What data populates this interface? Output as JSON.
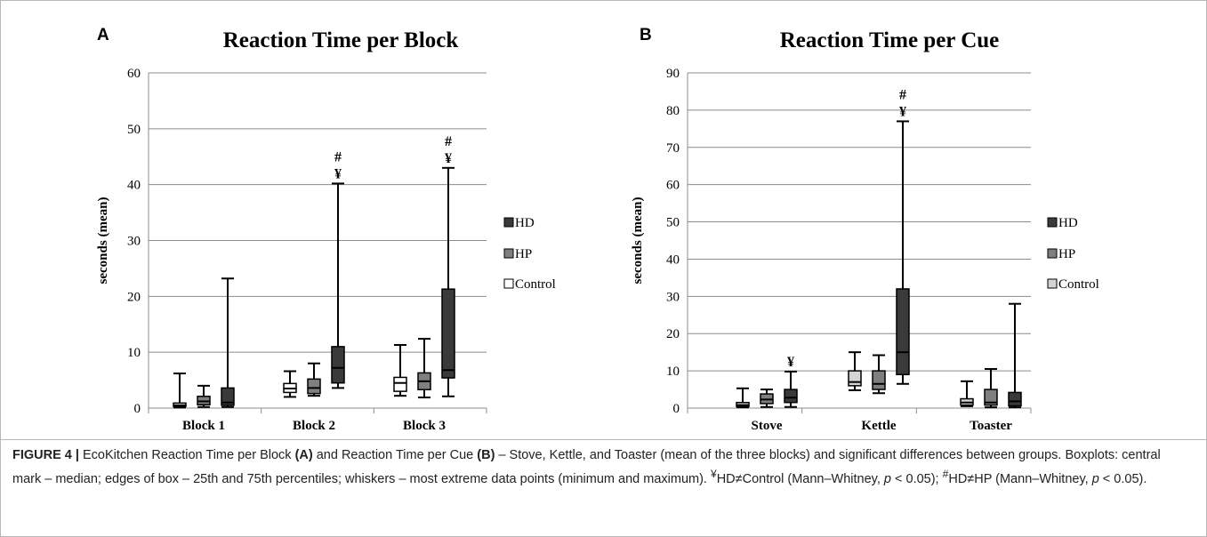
{
  "colors": {
    "HD": "#3a3a3a",
    "HP": "#7f7f7f",
    "Control": "#ffffff",
    "Control_B": "#d4d4d4",
    "grid": "#8c8c8c"
  },
  "chart_data": [
    {
      "type": "box",
      "panel": "A",
      "title": "Reaction Time per Block",
      "xlabel": "",
      "ylabel": "seconds (mean)",
      "ylim": [
        0,
        60
      ],
      "yticks": [
        0,
        10,
        20,
        30,
        40,
        50,
        60
      ],
      "grid": true,
      "legend_position": "right",
      "legend": [
        "HD",
        "HP",
        "Control"
      ],
      "categories": [
        "Block 1",
        "Block 2",
        "Block 3"
      ],
      "series": [
        {
          "name": "Control",
          "boxes": [
            {
              "min": 0.1,
              "q1": 0.3,
              "median": 0.5,
              "q3": 0.9,
              "max": 6.2
            },
            {
              "min": 2.0,
              "q1": 2.8,
              "median": 3.5,
              "q3": 4.4,
              "max": 6.6
            },
            {
              "min": 2.2,
              "q1": 3.0,
              "median": 4.5,
              "q3": 5.5,
              "max": 11.3
            }
          ]
        },
        {
          "name": "HP",
          "boxes": [
            {
              "min": 0.2,
              "q1": 0.6,
              "median": 1.2,
              "q3": 2.1,
              "max": 4.0
            },
            {
              "min": 2.2,
              "q1": 2.6,
              "median": 3.6,
              "q3": 5.2,
              "max": 8.0
            },
            {
              "min": 1.9,
              "q1": 3.3,
              "median": 4.8,
              "q3": 6.3,
              "max": 12.4
            }
          ]
        },
        {
          "name": "HD",
          "boxes": [
            {
              "min": 0.2,
              "q1": 0.5,
              "median": 1.0,
              "q3": 3.6,
              "max": 23.2
            },
            {
              "min": 3.6,
              "q1": 4.5,
              "median": 7.2,
              "q3": 11.0,
              "max": 40.2
            },
            {
              "min": 2.1,
              "q1": 5.4,
              "median": 6.8,
              "q3": 21.3,
              "max": 43.0
            }
          ]
        }
      ],
      "annotations": [
        {
          "category": "Block 2",
          "series": "HD",
          "marks": [
            "#",
            "¥"
          ]
        },
        {
          "category": "Block 3",
          "series": "HD",
          "marks": [
            "#",
            "¥"
          ]
        }
      ]
    },
    {
      "type": "box",
      "panel": "B",
      "title": "Reaction Time per Cue",
      "xlabel": "",
      "ylabel": "seconds (mean)",
      "ylim": [
        0,
        90
      ],
      "yticks": [
        0,
        10,
        20,
        30,
        40,
        50,
        60,
        70,
        80,
        90
      ],
      "grid": true,
      "legend_position": "right",
      "legend": [
        "HD",
        "HP",
        "Control"
      ],
      "categories": [
        "Stove",
        "Kettle",
        "Toaster"
      ],
      "series": [
        {
          "name": "Control",
          "boxes": [
            {
              "min": 0.2,
              "q1": 0.4,
              "median": 0.8,
              "q3": 1.5,
              "max": 5.3
            },
            {
              "min": 4.8,
              "q1": 6.0,
              "median": 7.0,
              "q3": 10.0,
              "max": 15.0
            },
            {
              "min": 0.5,
              "q1": 0.8,
              "median": 1.5,
              "q3": 2.5,
              "max": 7.2
            }
          ]
        },
        {
          "name": "HP",
          "boxes": [
            {
              "min": 0.3,
              "q1": 1.2,
              "median": 2.3,
              "q3": 3.8,
              "max": 5.0
            },
            {
              "min": 4.0,
              "q1": 5.0,
              "median": 6.5,
              "q3": 10.0,
              "max": 14.2
            },
            {
              "min": 0.2,
              "q1": 0.8,
              "median": 1.5,
              "q3": 5.0,
              "max": 10.5
            }
          ]
        },
        {
          "name": "HD",
          "boxes": [
            {
              "min": 0.3,
              "q1": 1.5,
              "median": 2.8,
              "q3": 5.0,
              "max": 9.8
            },
            {
              "min": 6.5,
              "q1": 9.0,
              "median": 15.0,
              "q3": 32.0,
              "max": 77.0
            },
            {
              "min": 0.2,
              "q1": 0.6,
              "median": 1.8,
              "q3": 4.2,
              "max": 28.0
            }
          ]
        }
      ],
      "annotations": [
        {
          "category": "Stove",
          "series": "HD",
          "marks": [
            "¥"
          ]
        },
        {
          "category": "Kettle",
          "series": "HD",
          "marks": [
            "#",
            "¥"
          ]
        }
      ]
    }
  ],
  "caption": {
    "label": "FIGURE 4 |",
    "part1": "EcoKitchen Reaction Time per Block",
    "a": "(A)",
    "part2": "and Reaction Time per Cue",
    "b": "(B)",
    "part3": "– Stove, Kettle, and Toaster (mean of the three blocks) and significant differences between groups. Boxplots: central mark – median; edges of box – 25th and 75th percentiles; whiskers – most extreme data points (minimum and maximum).",
    "yen": "¥",
    "part4": "HD≠Control (Mann–Whitney,",
    "p1": "p",
    "part5": "< 0.05);",
    "hash": "#",
    "part6": "HD≠HP (Mann–Whitney,",
    "p2": "p",
    "part7": "< 0.05)."
  }
}
